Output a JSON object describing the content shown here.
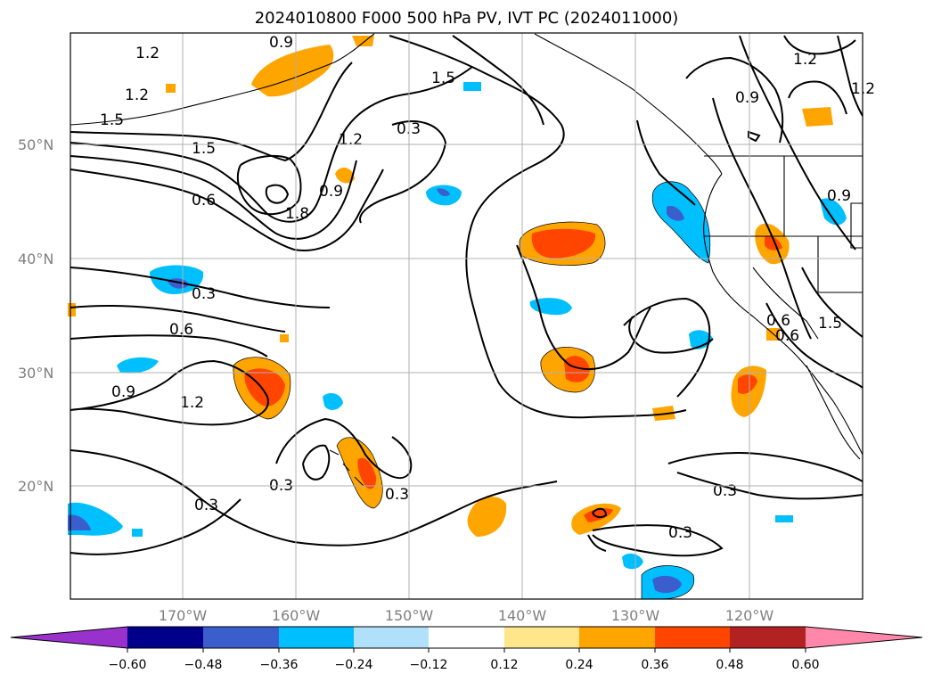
{
  "title": "2024010800 F000 500 hPa PV, IVT PC (2024011000)",
  "map": {
    "lat_labels": [
      "50°N",
      "40°N",
      "30°N",
      "20°N"
    ],
    "lon_labels": [
      "170°W",
      "160°W",
      "150°W",
      "140°W",
      "130°W",
      "120°W"
    ],
    "gridlines": true,
    "contour_labels": [
      "1.2",
      "0.9",
      "1.2",
      "1.5",
      "1.5",
      "0.3",
      "1.2",
      "1.5",
      "0.6",
      "1.2",
      "0.9",
      "1.8",
      "0.9",
      "1.2",
      "0.9",
      "0.3",
      "0.6",
      "0.9",
      "1.2",
      "0.3",
      "0.3",
      "0.3",
      "0.3",
      "0.3",
      "0.6",
      "1.5",
      "0.6"
    ]
  },
  "colorbar": {
    "ticks": [
      "−0.60",
      "−0.48",
      "−0.36",
      "−0.24",
      "−0.12",
      "0.12",
      "0.24",
      "0.36",
      "0.48",
      "0.60"
    ],
    "colors": [
      "#9932cc",
      "#00008b",
      "#3a5fcd",
      "#00bfff",
      "#b0e0fa",
      "#ffffff",
      "#ffe68a",
      "#ffa500",
      "#ff4500",
      "#b22222",
      "#ff88aa"
    ]
  }
}
